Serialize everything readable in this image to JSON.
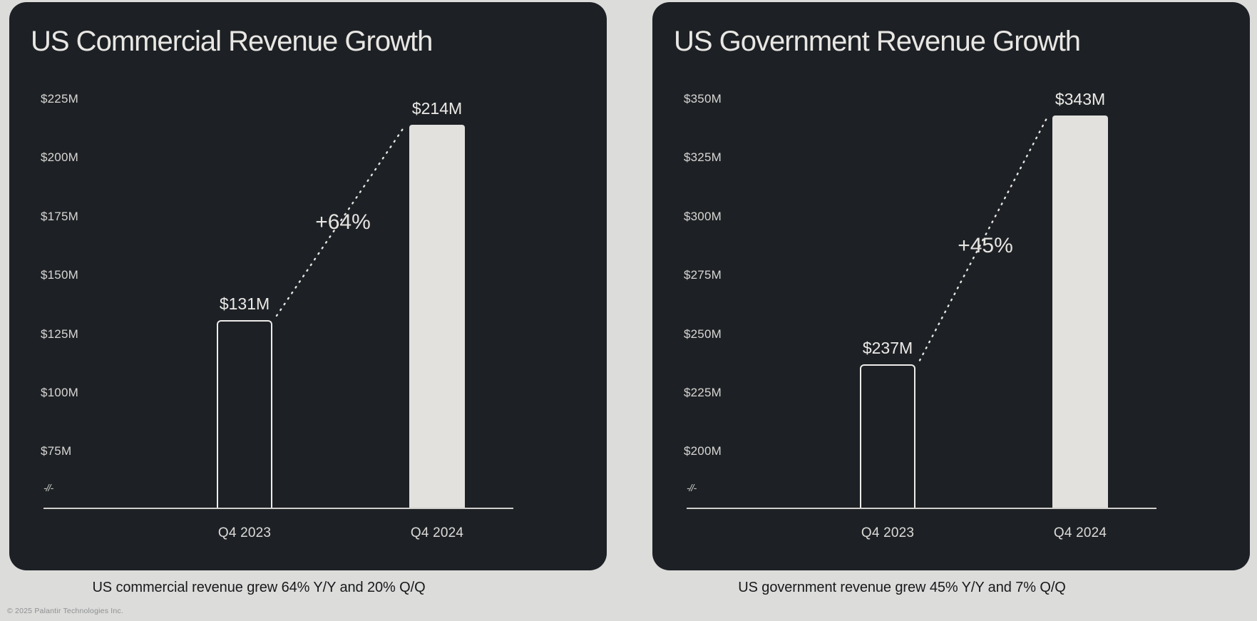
{
  "page": {
    "background_color": "#dcdcda",
    "card_color": "#1d2125",
    "footer_copyright": "© 2025 Palantir Technologies Inc."
  },
  "colors": {
    "bar_filled": "#e2e1de",
    "bar_outline": "#edecea",
    "axis_line": "#d0cecb",
    "light_text": "#e9e7e4",
    "tick_text": "#d8d6d3",
    "caption_text": "#17191b",
    "connector_dotted": "#e6e4e1"
  },
  "chart_data": [
    {
      "type": "bar",
      "title": "US Commercial Revenue Growth",
      "unit": "USD millions",
      "categories": [
        "Q4 2023",
        "Q4 2024"
      ],
      "values": [
        131,
        214
      ],
      "value_labels": [
        "$131M",
        "$214M"
      ],
      "bar_styles": [
        "outline",
        "filled"
      ],
      "growth_annotation": "+64%",
      "ytick_labels": [
        "$225M",
        "$200M",
        "$175M",
        "$150M",
        "$125M",
        "$100M",
        "$75M"
      ],
      "ytick_values": [
        225,
        200,
        175,
        150,
        125,
        100,
        75
      ],
      "ylim_display": [
        75,
        225
      ],
      "axis_break_symbol": "-//-",
      "grid": "off",
      "legend": "none",
      "caption": "US commercial revenue grew 64% Y/Y and 20% Q/Q"
    },
    {
      "type": "bar",
      "title": "US Government Revenue Growth",
      "unit": "USD millions",
      "categories": [
        "Q4 2023",
        "Q4 2024"
      ],
      "values": [
        237,
        343
      ],
      "value_labels": [
        "$237M",
        "$343M"
      ],
      "bar_styles": [
        "outline",
        "filled"
      ],
      "growth_annotation": "+45%",
      "ytick_labels": [
        "$350M",
        "$325M",
        "$300M",
        "$275M",
        "$250M",
        "$225M",
        "$200M"
      ],
      "ytick_values": [
        350,
        325,
        300,
        275,
        250,
        225,
        200
      ],
      "ylim_display": [
        200,
        350
      ],
      "axis_break_symbol": "-//-",
      "grid": "off",
      "legend": "none",
      "caption": "US government revenue grew 45% Y/Y and 7% Q/Q"
    }
  ]
}
